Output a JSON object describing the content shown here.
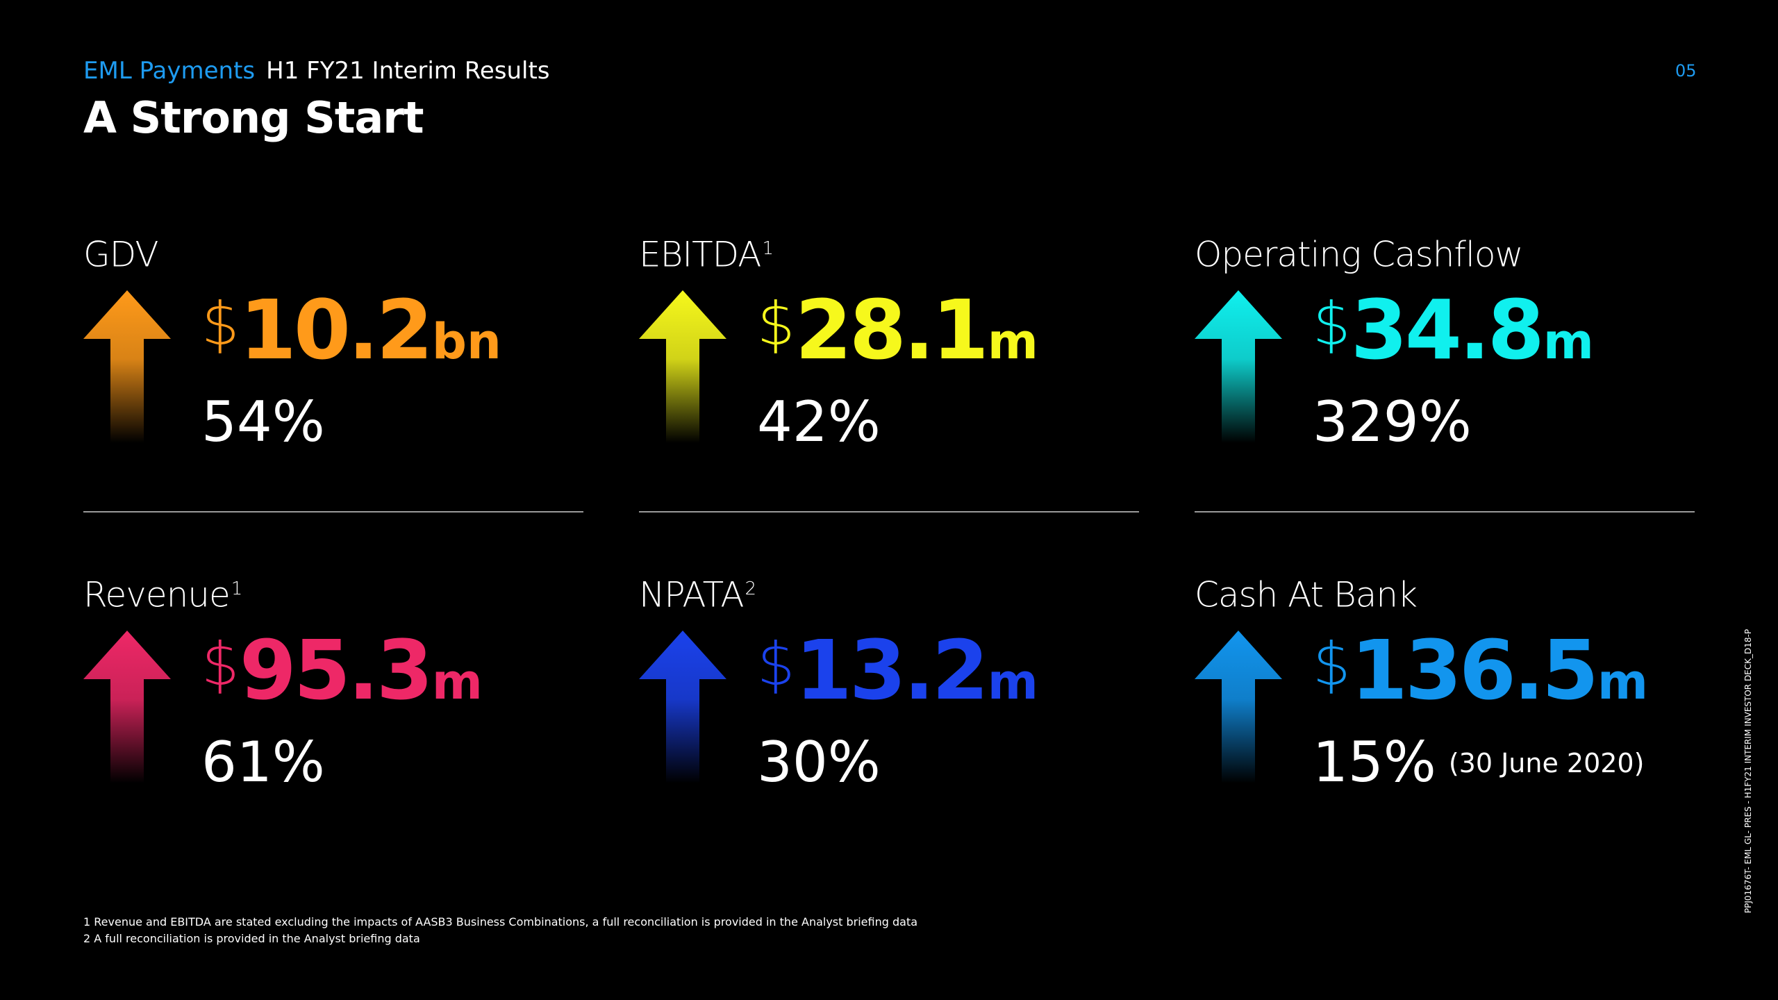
{
  "header": {
    "brand": "EML Payments",
    "subtitle": "H1 FY21 Interim Results",
    "title": "A Strong Start",
    "page_number": "05"
  },
  "metrics": [
    {
      "label": "GDV",
      "sup": "",
      "currency": "$",
      "value": "10.2",
      "unit": "bn",
      "change": "54%",
      "note": "",
      "color": "#ff9a1a"
    },
    {
      "label": "EBITDA",
      "sup": "1",
      "currency": "$",
      "value": "28.1",
      "unit": "m",
      "change": "42%",
      "note": "",
      "color": "#f6f81c"
    },
    {
      "label": "Operating Cashflow",
      "sup": "",
      "currency": "$",
      "value": "34.8",
      "unit": "m",
      "change": "329%",
      "note": "",
      "color": "#10f0ee"
    },
    {
      "label": "Revenue",
      "sup": "1",
      "currency": "$",
      "value": "95.3",
      "unit": "m",
      "change": "61%",
      "note": "",
      "color": "#ee2867"
    },
    {
      "label": "NPATA",
      "sup": "2",
      "currency": "$",
      "value": "13.2",
      "unit": "m",
      "change": "30%",
      "note": "",
      "color": "#1b42ec"
    },
    {
      "label": "Cash At Bank",
      "sup": "",
      "currency": "$",
      "value": "136.5",
      "unit": "m",
      "change": "15%",
      "note": "(30 June 2020)",
      "color": "#1295ee"
    }
  ],
  "footnotes": [
    "1 Revenue and EBITDA are stated excluding the impacts of AASB3 Business Combinations, a full reconciliation is provided in the Analyst briefing data",
    "2 A full reconciliation is provided in the Analyst briefing data"
  ],
  "side_code": "PPJ01676T- EML GL- PRES - H1FY21 INTERIM INVESTOR DECK_D18-P"
}
